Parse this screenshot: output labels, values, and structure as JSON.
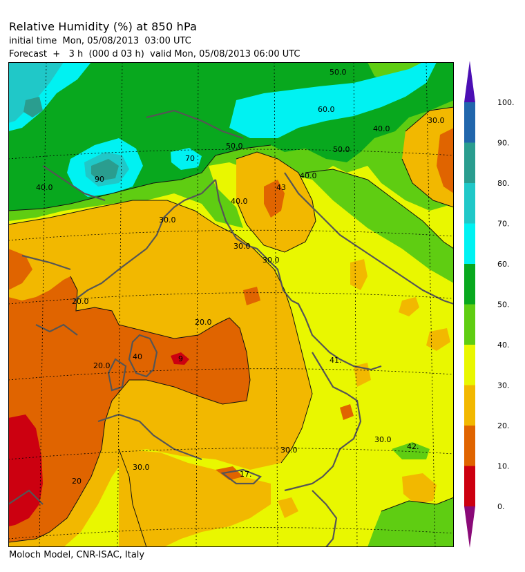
{
  "header": {
    "title": "Relative Humidity (%) at 850 hPa",
    "initial_time": "initial time  Mon, 05/08/2013  03:00 UTC",
    "forecast": "Forecast  +   3 h  (000 d 03 h)  valid Mon, 05/08/2013 06:00 UTC"
  },
  "footer": {
    "credit": "Moloch Model, CNR-ISAC, Italy"
  },
  "colorbar": {
    "levels": [
      "100.",
      "90.",
      "80.",
      "70.",
      "60.",
      "50.",
      "40.",
      "30.",
      "20.",
      "10.",
      "0."
    ],
    "colors": [
      "#2166ac",
      "#2a9d8f",
      "#20c8c8",
      "#00f2f2",
      "#08a81e",
      "#5fcd12",
      "#e9f700",
      "#f2b800",
      "#e06400",
      "#cc0010"
    ],
    "over_color": "#4b0fb4",
    "under_color": "#8a0a78"
  },
  "map": {
    "contour_labels": [
      "50.0",
      "60.0",
      "70",
      "90",
      "40.0",
      "30.0",
      "50.0",
      "30.0",
      "40.0",
      "30.0",
      "30.0",
      "40.0",
      "20.0",
      "20.0",
      "40",
      "9",
      "20.0",
      "41.",
      "30.0",
      "30.0",
      "42.",
      "30.0",
      "17.",
      "20",
      "43",
      "40.0",
      "50.0"
    ]
  }
}
